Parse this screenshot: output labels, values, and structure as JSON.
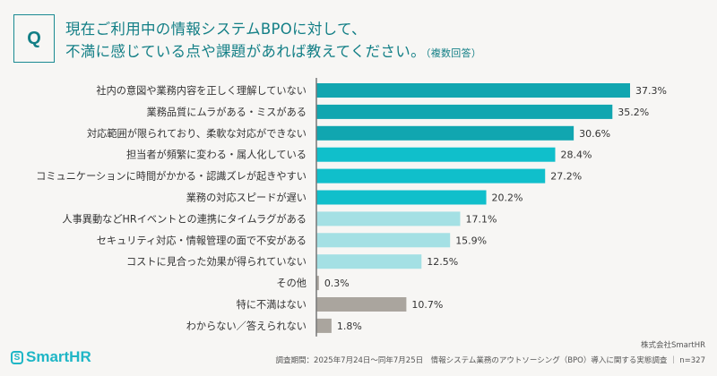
{
  "header": {
    "q_label": "Q",
    "title_line1": "現在ご利用中の情報システムBPOに対して、",
    "title_line2": "不満に感じている点や課題があれば教えてください。",
    "title_note": "（複数回答）"
  },
  "chart_data": {
    "type": "bar",
    "orientation": "horizontal",
    "unit": "%",
    "xlim": [
      0,
      40
    ],
    "grid": false,
    "categories": [
      "社内の意図や業務内容を正しく理解していない",
      "業務品質にムラがある・ミスがある",
      "対応範囲が限られており、柔軟な対応ができない",
      "担当者が頻繁に変わる・属人化している",
      "コミュニケーションに時間がかかる・認識ズレが起きやすい",
      "業務の対応スピードが遅い",
      "人事異動などHRイベントとの連携にタイムラグがある",
      "セキュリティ対応・情報管理の面で不安がある",
      "コストに見合った効果が得られていない",
      "その他",
      "特に不満はない",
      "わからない／答えられない"
    ],
    "values": [
      37.3,
      35.2,
      30.6,
      28.4,
      27.2,
      20.2,
      17.1,
      15.9,
      12.5,
      0.3,
      10.7,
      1.8
    ],
    "colors": [
      "#11a6b0",
      "#11a6b0",
      "#11a6b0",
      "#10bfcb",
      "#10bfcb",
      "#10bfcb",
      "#a4e0e4",
      "#a4e0e4",
      "#a4e0e4",
      "#aaa59e",
      "#aaa59e",
      "#aaa59e"
    ]
  },
  "footer": {
    "logo_text": "SmartHR",
    "logo_mark": "S",
    "company": "株式会社SmartHR",
    "source": "調査期間：2025年7月24日〜同年7月25日　情報システム業務のアウトソーシング（BPO）導入に関する実態調査 ｜ n=327"
  }
}
